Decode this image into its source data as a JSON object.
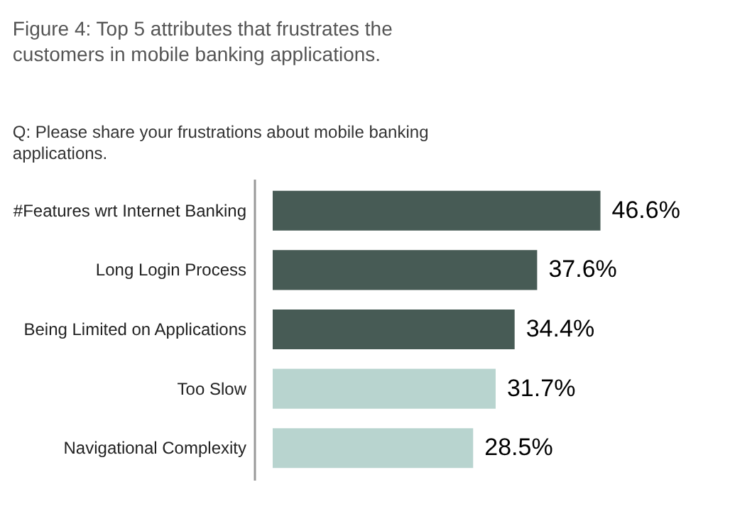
{
  "chart_data": {
    "type": "bar",
    "orientation": "horizontal",
    "title": "Figure 4: Top 5 attributes that frustrates the customers in mobile banking applications.",
    "subtitle": "Q: Please share your frustrations about mobile banking applications.",
    "categories": [
      "#Features wrt Internet Banking",
      "Long Login Process",
      "Being Limited on Applications",
      "Too Slow",
      "Navigational Complexity"
    ],
    "values": [
      46.6,
      37.6,
      34.4,
      31.7,
      28.5
    ],
    "colors": [
      "#475b55",
      "#475b55",
      "#475b55",
      "#b8d4cf",
      "#b8d4cf"
    ],
    "value_labels": [
      "46.6%",
      "37.6%",
      "34.4%",
      "31.7%",
      "28.5%"
    ],
    "tick_labels": "y",
    "grid": false
  }
}
